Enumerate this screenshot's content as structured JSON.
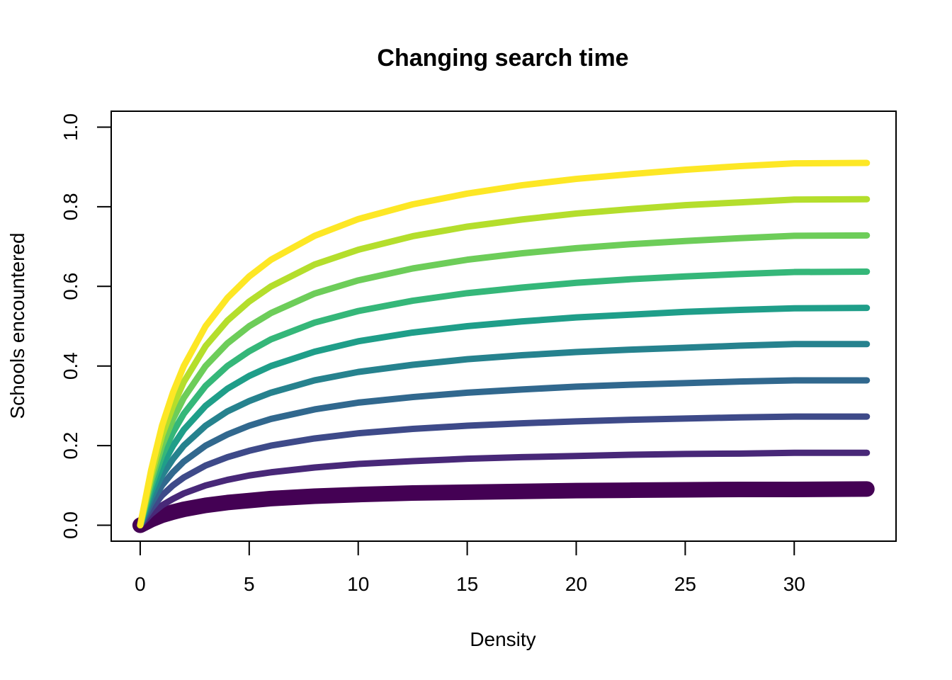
{
  "chart_data": {
    "type": "line",
    "title": "Changing search time",
    "xlabel": "Density",
    "ylabel": "Schools encountered",
    "xlim": [
      -1.33,
      34.67
    ],
    "ylim": [
      -0.04,
      1.04
    ],
    "x_ticks": [
      0,
      5,
      10,
      15,
      20,
      25,
      30
    ],
    "x_tick_labels": [
      "0",
      "5",
      "10",
      "15",
      "20",
      "25",
      "30"
    ],
    "y_ticks": [
      0.0,
      0.2,
      0.4,
      0.6,
      0.8,
      1.0
    ],
    "y_tick_labels": [
      "0.0",
      "0.2",
      "0.4",
      "0.6",
      "0.8",
      "1.0"
    ],
    "grid": false,
    "legend": "none",
    "x": [
      0,
      0.5,
      1,
      1.5,
      2,
      3,
      4,
      5,
      6,
      8,
      10,
      12.5,
      15,
      17.5,
      20,
      22.5,
      25,
      27.5,
      30,
      33.33
    ],
    "series": [
      {
        "color": "#440154",
        "emphasis": "thick",
        "values": [
          0.0,
          0.014,
          0.025,
          0.033,
          0.04,
          0.05,
          0.057,
          0.062,
          0.067,
          0.073,
          0.077,
          0.081,
          0.083,
          0.085,
          0.087,
          0.088,
          0.089,
          0.09,
          0.09,
          0.091
        ]
      },
      {
        "color": "#482878",
        "values": [
          0.0,
          0.028,
          0.05,
          0.066,
          0.08,
          0.1,
          0.114,
          0.125,
          0.133,
          0.145,
          0.154,
          0.161,
          0.167,
          0.171,
          0.174,
          0.177,
          0.179,
          0.18,
          0.182,
          0.182
        ]
      },
      {
        "color": "#3E4A89",
        "values": [
          0.0,
          0.041,
          0.075,
          0.1,
          0.12,
          0.15,
          0.171,
          0.187,
          0.2,
          0.218,
          0.231,
          0.242,
          0.25,
          0.256,
          0.261,
          0.265,
          0.268,
          0.271,
          0.273,
          0.273
        ]
      },
      {
        "color": "#31688E",
        "values": [
          0.0,
          0.055,
          0.1,
          0.133,
          0.16,
          0.2,
          0.228,
          0.25,
          0.267,
          0.291,
          0.308,
          0.322,
          0.333,
          0.341,
          0.348,
          0.353,
          0.357,
          0.361,
          0.364,
          0.364
        ]
      },
      {
        "color": "#26828E",
        "values": [
          0.0,
          0.069,
          0.125,
          0.166,
          0.2,
          0.25,
          0.286,
          0.312,
          0.333,
          0.364,
          0.385,
          0.403,
          0.417,
          0.427,
          0.435,
          0.441,
          0.446,
          0.451,
          0.455,
          0.455
        ]
      },
      {
        "color": "#1F9E89",
        "values": [
          0.0,
          0.083,
          0.15,
          0.199,
          0.24,
          0.3,
          0.343,
          0.375,
          0.4,
          0.436,
          0.462,
          0.484,
          0.5,
          0.512,
          0.522,
          0.529,
          0.536,
          0.541,
          0.545,
          0.546
        ]
      },
      {
        "color": "#35B779",
        "values": [
          0.0,
          0.097,
          0.175,
          0.233,
          0.28,
          0.35,
          0.4,
          0.437,
          0.467,
          0.509,
          0.538,
          0.564,
          0.583,
          0.597,
          0.609,
          0.618,
          0.625,
          0.631,
          0.636,
          0.637
        ]
      },
      {
        "color": "#6DCD59",
        "values": [
          0.0,
          0.111,
          0.2,
          0.266,
          0.32,
          0.4,
          0.457,
          0.5,
          0.533,
          0.582,
          0.615,
          0.645,
          0.667,
          0.683,
          0.696,
          0.706,
          0.714,
          0.721,
          0.727,
          0.728
        ]
      },
      {
        "color": "#B4DE2C",
        "values": [
          0.0,
          0.124,
          0.225,
          0.299,
          0.36,
          0.45,
          0.514,
          0.562,
          0.6,
          0.655,
          0.692,
          0.726,
          0.75,
          0.768,
          0.783,
          0.794,
          0.804,
          0.811,
          0.818,
          0.819
        ]
      },
      {
        "color": "#FDE725",
        "values": [
          0.0,
          0.138,
          0.25,
          0.333,
          0.4,
          0.5,
          0.571,
          0.625,
          0.667,
          0.727,
          0.769,
          0.806,
          0.833,
          0.854,
          0.87,
          0.882,
          0.893,
          0.902,
          0.909,
          0.91
        ]
      }
    ]
  }
}
